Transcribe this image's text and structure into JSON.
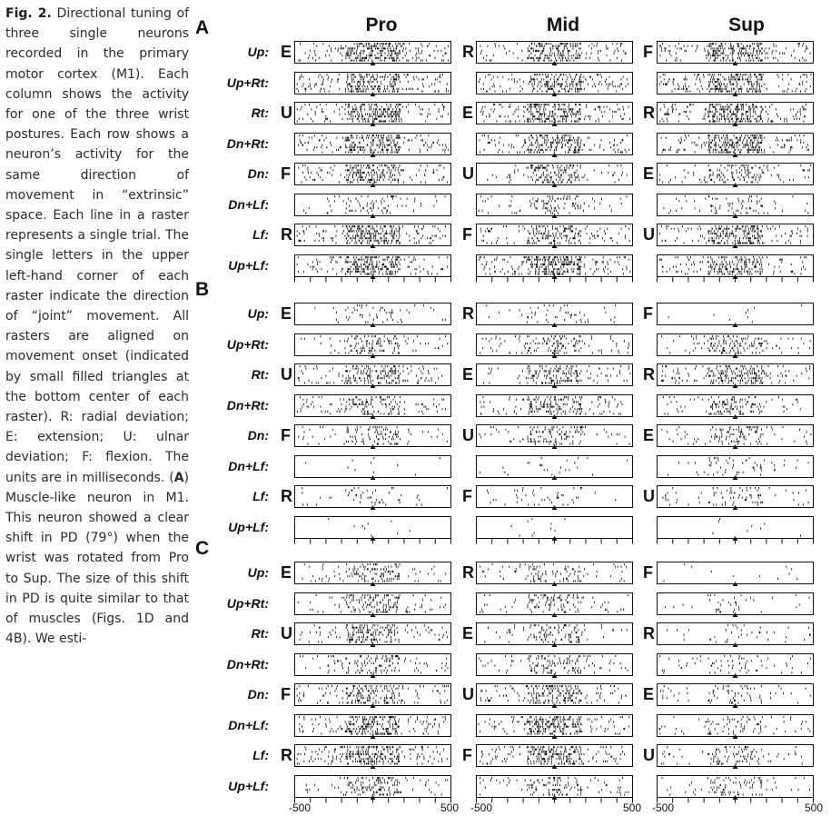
{
  "caption": {
    "label": "Fig. 2.",
    "text_1": " Directional tuning of three single neurons recorded in the primary motor cortex (M1). Each column shows the activity for one of the three wrist postures. Each row shows a neuron’s activity for the same direction of movement in “extrinsic” space. Each line in a raster represents a single trial. The single letters in the upper left-hand corner of each raster indicate the direction of “joint” movement. All rasters are aligned on movement onset (indicated by small filled triangles at the bottom center of each raster). R: radial deviation; E: extension; U: ulnar deviation; F: flexion. The units are in milliseconds. (",
    "bold_A": "A",
    "text_2": ") Muscle-like neuron in M1. This neuron showed a clear shift in PD (79°) when the wrist was rotated from Pro to Sup. The size of this shift in PD is quite similar to that of muscles (Figs. 1D and 4B). We esti-"
  },
  "columns": [
    "Pro",
    "Mid",
    "Sup"
  ],
  "panels": [
    {
      "letter": "A",
      "rows": [
        "Up:",
        "Up+Rt:",
        "Rt:",
        "Dn+Rt:",
        "Dn:",
        "Dn+Lf:",
        "Lf:",
        "Up+Lf:"
      ],
      "joint_letters": {
        "Pro": [
          "E",
          "",
          "U",
          "",
          "F",
          "",
          "R",
          ""
        ],
        "Mid": [
          "R",
          "",
          "E",
          "",
          "U",
          "",
          "F",
          ""
        ],
        "Sup": [
          "F",
          "",
          "R",
          "",
          "E",
          "",
          "U",
          ""
        ]
      }
    },
    {
      "letter": "B",
      "rows": [
        "Up:",
        "Up+Rt:",
        "Rt:",
        "Dn+Rt:",
        "Dn:",
        "Dn+Lf:",
        "Lf:",
        "Up+Lf:"
      ],
      "joint_letters": {
        "Pro": [
          "E",
          "",
          "U",
          "",
          "F",
          "",
          "R",
          ""
        ],
        "Mid": [
          "R",
          "",
          "E",
          "",
          "U",
          "",
          "F",
          ""
        ],
        "Sup": [
          "F",
          "",
          "R",
          "",
          "E",
          "",
          "U",
          ""
        ]
      }
    },
    {
      "letter": "C",
      "rows": [
        "Up:",
        "Up+Rt:",
        "Rt:",
        "Dn+Rt:",
        "Dn:",
        "Dn+Lf:",
        "Lf:",
        "Up+Lf:"
      ],
      "joint_letters": {
        "Pro": [
          "E",
          "",
          "U",
          "",
          "F",
          "",
          "R",
          ""
        ],
        "Mid": [
          "R",
          "",
          "E",
          "",
          "U",
          "",
          "F",
          ""
        ],
        "Sup": [
          "F",
          "",
          "R",
          "",
          "E",
          "",
          "U",
          ""
        ]
      }
    }
  ],
  "x_axis": {
    "min_label": "-500",
    "max_label": "500",
    "range_ms": [
      -500,
      500
    ]
  },
  "colors": {
    "ink": "#111111",
    "text": "#2b2b2b"
  }
}
